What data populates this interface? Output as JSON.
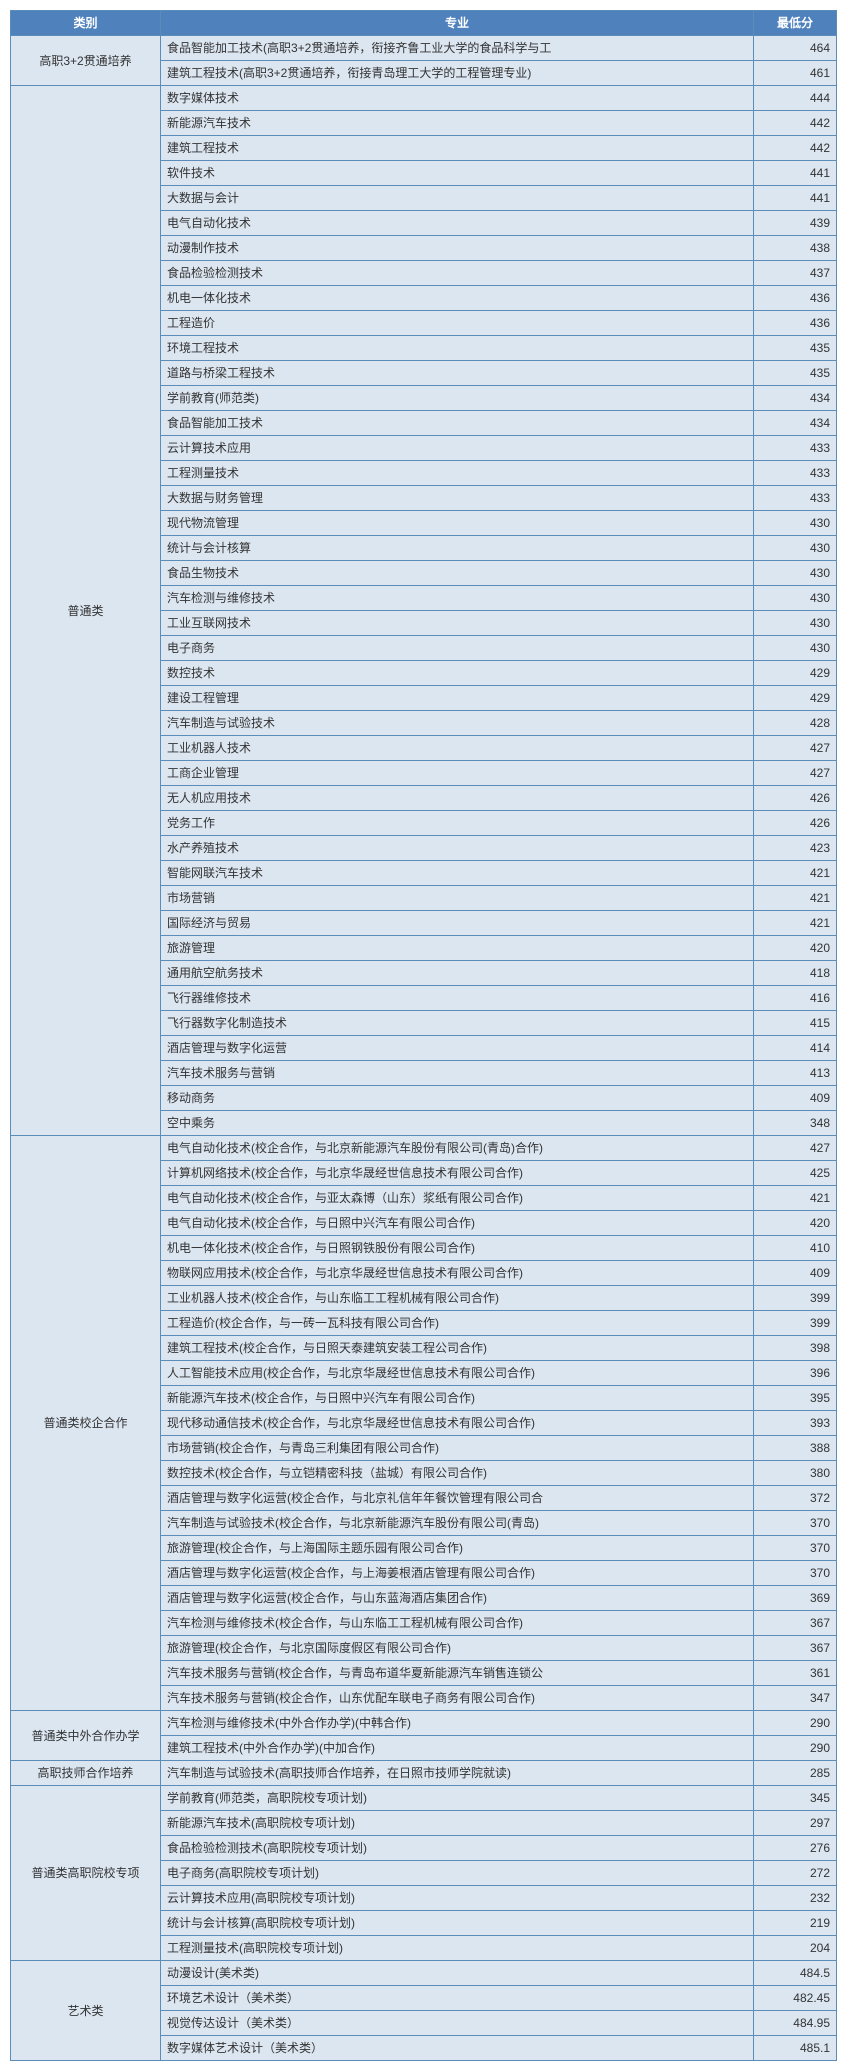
{
  "columns": [
    "类别",
    "专业",
    "最低分"
  ],
  "col_widths": [
    "150px",
    "auto",
    "70px"
  ],
  "header_bg": "#4f81bd",
  "header_fg": "#ffffff",
  "cell_bg": "#dce6f1",
  "border_color": "#5b8db8",
  "groups": [
    {
      "category": "高职3+2贯通培养",
      "rows": [
        {
          "major": "食品智能加工技术(高职3+2贯通培养，衔接齐鲁工业大学的食品科学与工",
          "score": "464"
        },
        {
          "major": "建筑工程技术(高职3+2贯通培养，衔接青岛理工大学的工程管理专业)",
          "score": "461"
        }
      ]
    },
    {
      "category": "普通类",
      "rows": [
        {
          "major": "数字媒体技术",
          "score": "444"
        },
        {
          "major": "新能源汽车技术",
          "score": "442"
        },
        {
          "major": "建筑工程技术",
          "score": "442"
        },
        {
          "major": "软件技术",
          "score": "441"
        },
        {
          "major": "大数据与会计",
          "score": "441"
        },
        {
          "major": "电气自动化技术",
          "score": "439"
        },
        {
          "major": "动漫制作技术",
          "score": "438"
        },
        {
          "major": "食品检验检测技术",
          "score": "437"
        },
        {
          "major": "机电一体化技术",
          "score": "436"
        },
        {
          "major": "工程造价",
          "score": "436"
        },
        {
          "major": "环境工程技术",
          "score": "435"
        },
        {
          "major": "道路与桥梁工程技术",
          "score": "435"
        },
        {
          "major": "学前教育(师范类)",
          "score": "434"
        },
        {
          "major": "食品智能加工技术",
          "score": "434"
        },
        {
          "major": "云计算技术应用",
          "score": "433"
        },
        {
          "major": "工程测量技术",
          "score": "433"
        },
        {
          "major": "大数据与财务管理",
          "score": "433"
        },
        {
          "major": "现代物流管理",
          "score": "430"
        },
        {
          "major": "统计与会计核算",
          "score": "430"
        },
        {
          "major": "食品生物技术",
          "score": "430"
        },
        {
          "major": "汽车检测与维修技术",
          "score": "430"
        },
        {
          "major": "工业互联网技术",
          "score": "430"
        },
        {
          "major": "电子商务",
          "score": "430"
        },
        {
          "major": "数控技术",
          "score": "429"
        },
        {
          "major": "建设工程管理",
          "score": "429"
        },
        {
          "major": "汽车制造与试验技术",
          "score": "428"
        },
        {
          "major": "工业机器人技术",
          "score": "427"
        },
        {
          "major": "工商企业管理",
          "score": "427"
        },
        {
          "major": "无人机应用技术",
          "score": "426"
        },
        {
          "major": "党务工作",
          "score": "426"
        },
        {
          "major": "水产养殖技术",
          "score": "423"
        },
        {
          "major": "智能网联汽车技术",
          "score": "421"
        },
        {
          "major": "市场营销",
          "score": "421"
        },
        {
          "major": "国际经济与贸易",
          "score": "421"
        },
        {
          "major": "旅游管理",
          "score": "420"
        },
        {
          "major": "通用航空航务技术",
          "score": "418"
        },
        {
          "major": "飞行器维修技术",
          "score": "416"
        },
        {
          "major": "飞行器数字化制造技术",
          "score": "415"
        },
        {
          "major": "酒店管理与数字化运营",
          "score": "414"
        },
        {
          "major": "汽车技术服务与营销",
          "score": "413"
        },
        {
          "major": "移动商务",
          "score": "409"
        },
        {
          "major": "空中乘务",
          "score": "348"
        }
      ]
    },
    {
      "category": "普通类校企合作",
      "rows": [
        {
          "major": "电气自动化技术(校企合作，与北京新能源汽车股份有限公司(青岛)合作)",
          "score": "427"
        },
        {
          "major": "计算机网络技术(校企合作，与北京华晟经世信息技术有限公司合作)",
          "score": "425"
        },
        {
          "major": "电气自动化技术(校企合作，与亚太森博（山东）浆纸有限公司合作)",
          "score": "421"
        },
        {
          "major": "电气自动化技术(校企合作，与日照中兴汽车有限公司合作)",
          "score": "420"
        },
        {
          "major": "机电一体化技术(校企合作，与日照钢铁股份有限公司合作)",
          "score": "410"
        },
        {
          "major": "物联网应用技术(校企合作，与北京华晟经世信息技术有限公司合作)",
          "score": "409"
        },
        {
          "major": "工业机器人技术(校企合作，与山东临工工程机械有限公司合作)",
          "score": "399"
        },
        {
          "major": "工程造价(校企合作，与一砖一瓦科技有限公司合作)",
          "score": "399"
        },
        {
          "major": "建筑工程技术(校企合作，与日照天泰建筑安装工程公司合作)",
          "score": "398"
        },
        {
          "major": "人工智能技术应用(校企合作，与北京华晟经世信息技术有限公司合作)",
          "score": "396"
        },
        {
          "major": "新能源汽车技术(校企合作，与日照中兴汽车有限公司合作)",
          "score": "395"
        },
        {
          "major": "现代移动通信技术(校企合作，与北京华晟经世信息技术有限公司合作)",
          "score": "393"
        },
        {
          "major": "市场营销(校企合作，与青岛三利集团有限公司合作)",
          "score": "388"
        },
        {
          "major": "数控技术(校企合作，与立铠精密科技（盐城）有限公司合作)",
          "score": "380"
        },
        {
          "major": "酒店管理与数字化运营(校企合作，与北京礼信年年餐饮管理有限公司合",
          "score": "372"
        },
        {
          "major": "汽车制造与试验技术(校企合作，与北京新能源汽车股份有限公司(青岛)",
          "score": "370"
        },
        {
          "major": "旅游管理(校企合作，与上海国际主题乐园有限公司合作)",
          "score": "370"
        },
        {
          "major": "酒店管理与数字化运营(校企合作，与上海姜根酒店管理有限公司合作)",
          "score": "370"
        },
        {
          "major": "酒店管理与数字化运营(校企合作，与山东蓝海酒店集团合作)",
          "score": "369"
        },
        {
          "major": "汽车检测与维修技术(校企合作，与山东临工工程机械有限公司合作)",
          "score": "367"
        },
        {
          "major": "旅游管理(校企合作，与北京国际度假区有限公司合作)",
          "score": "367"
        },
        {
          "major": "汽车技术服务与营销(校企合作，与青岛布道华夏新能源汽车销售连锁公",
          "score": "361"
        },
        {
          "major": "汽车技术服务与营销(校企合作，山东优配车联电子商务有限公司合作)",
          "score": "347"
        }
      ]
    },
    {
      "category": "普通类中外合作办学",
      "rows": [
        {
          "major": "汽车检测与维修技术(中外合作办学)(中韩合作)",
          "score": "290"
        },
        {
          "major": "建筑工程技术(中外合作办学)(中加合作)",
          "score": "290"
        }
      ]
    },
    {
      "category": "高职技师合作培养",
      "rows": [
        {
          "major": "汽车制造与试验技术(高职技师合作培养，在日照市技师学院就读)",
          "score": "285"
        }
      ]
    },
    {
      "category": "普通类高职院校专项",
      "rows": [
        {
          "major": "学前教育(师范类，高职院校专项计划)",
          "score": "345"
        },
        {
          "major": "新能源汽车技术(高职院校专项计划)",
          "score": "297"
        },
        {
          "major": "食品检验检测技术(高职院校专项计划)",
          "score": "276"
        },
        {
          "major": "电子商务(高职院校专项计划)",
          "score": "272"
        },
        {
          "major": "云计算技术应用(高职院校专项计划)",
          "score": "232"
        },
        {
          "major": "统计与会计核算(高职院校专项计划)",
          "score": "219"
        },
        {
          "major": "工程测量技术(高职院校专项计划)",
          "score": "204"
        }
      ]
    },
    {
      "category": "艺术类",
      "rows": [
        {
          "major": "动漫设计(美术类)",
          "score": "484.5"
        },
        {
          "major": "环境艺术设计（美术类）",
          "score": "482.45"
        },
        {
          "major": "视觉传达设计（美术类）",
          "score": "484.95"
        },
        {
          "major": "数字媒体艺术设计（美术类）",
          "score": "485.1"
        }
      ]
    }
  ]
}
